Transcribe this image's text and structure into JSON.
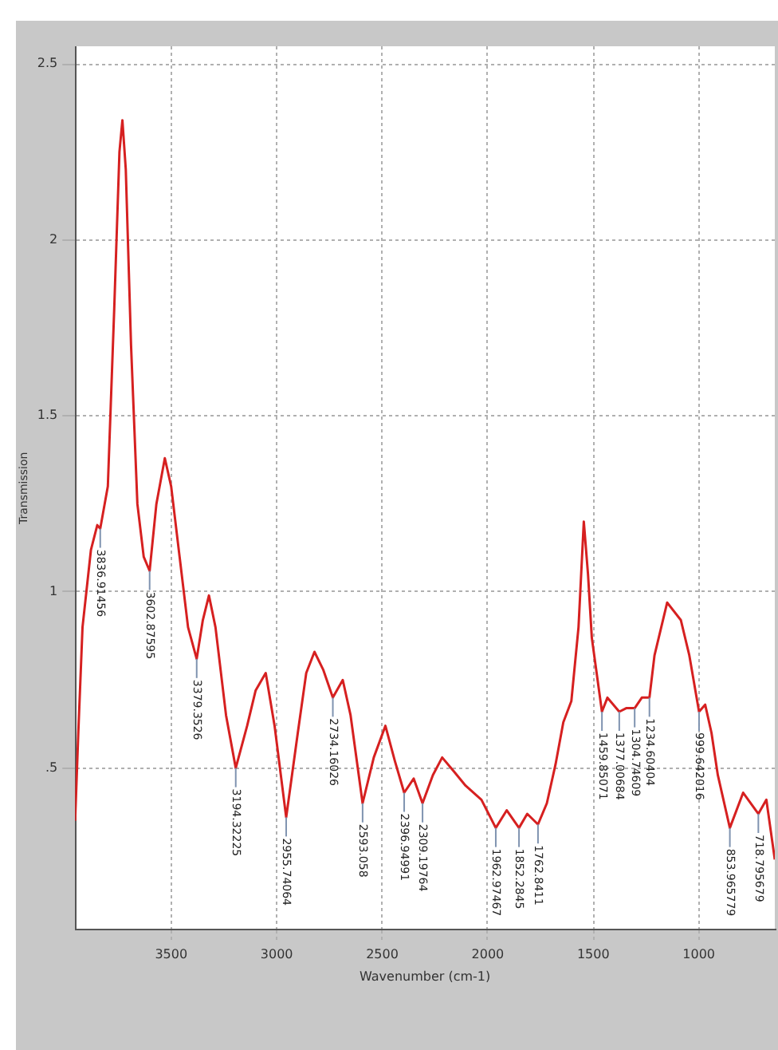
{
  "chart_data": {
    "type": "line",
    "xlabel": "Wavenumber (cm-1)",
    "ylabel": "Transmission",
    "xlim": [
      3955,
      640
    ],
    "xticks": [
      3500,
      3000,
      2500,
      2000,
      1500,
      1000
    ],
    "ylim": [
      0.04,
      2.55
    ],
    "yticks": [
      {
        "value": 0.5,
        "label": ".5"
      },
      1,
      1.5,
      2,
      2.5
    ],
    "grid": true,
    "legend": false,
    "marker": "none",
    "line_style": "solid",
    "x": [
      3955,
      3940,
      3920,
      3880,
      3850,
      3836,
      3800,
      3770,
      3745,
      3731,
      3715,
      3690,
      3660,
      3630,
      3602,
      3570,
      3530,
      3500,
      3460,
      3420,
      3379,
      3350,
      3321,
      3290,
      3240,
      3194,
      3140,
      3100,
      3052,
      3010,
      2955,
      2900,
      2860,
      2821,
      2780,
      2734,
      2687,
      2650,
      2593,
      2540,
      2485,
      2440,
      2396,
      2351,
      2309,
      2260,
      2216,
      2160,
      2105,
      2030,
      1962,
      1910,
      1852,
      1813,
      1762,
      1720,
      1679,
      1642,
      1604,
      1570,
      1545,
      1525,
      1507,
      1459,
      1433,
      1377,
      1344,
      1304,
      1270,
      1234,
      1210,
      1150,
      1085,
      1045,
      999,
      970,
      940,
      910,
      853,
      790,
      718,
      680,
      640
    ],
    "series": [
      {
        "color": "#d62020",
        "values": [
          0.35,
          0.6,
          0.9,
          1.12,
          1.19,
          1.18,
          1.3,
          1.8,
          2.25,
          2.34,
          2.2,
          1.7,
          1.25,
          1.1,
          1.06,
          1.25,
          1.38,
          1.3,
          1.1,
          0.9,
          0.81,
          0.92,
          0.99,
          0.9,
          0.65,
          0.5,
          0.62,
          0.72,
          0.77,
          0.62,
          0.36,
          0.6,
          0.77,
          0.83,
          0.78,
          0.7,
          0.75,
          0.65,
          0.4,
          0.53,
          0.62,
          0.52,
          0.43,
          0.47,
          0.4,
          0.48,
          0.53,
          0.49,
          0.45,
          0.41,
          0.33,
          0.38,
          0.33,
          0.37,
          0.34,
          0.4,
          0.51,
          0.63,
          0.69,
          0.9,
          1.2,
          1.05,
          0.87,
          0.66,
          0.7,
          0.66,
          0.67,
          0.67,
          0.7,
          0.7,
          0.82,
          0.97,
          0.92,
          0.82,
          0.66,
          0.68,
          0.6,
          0.48,
          0.33,
          0.43,
          0.37,
          0.41,
          0.24
        ]
      }
    ],
    "annotations": [
      {
        "text": "3836.91456",
        "x": 3836,
        "y": 1.18
      },
      {
        "text": "3602.87595",
        "x": 3602,
        "y": 1.06
      },
      {
        "text": "3379.3526",
        "x": 3379,
        "y": 0.81
      },
      {
        "text": "3194.32225",
        "x": 3194,
        "y": 0.5
      },
      {
        "text": "2955.74064",
        "x": 2955,
        "y": 0.36
      },
      {
        "text": "2734.16026",
        "x": 2734,
        "y": 0.7
      },
      {
        "text": "2593.058",
        "x": 2593,
        "y": 0.4
      },
      {
        "text": "2396.94991",
        "x": 2396,
        "y": 0.43
      },
      {
        "text": "2309.19764",
        "x": 2309,
        "y": 0.4
      },
      {
        "text": "1962.97467",
        "x": 1962,
        "y": 0.33
      },
      {
        "text": "1852.2845",
        "x": 1852,
        "y": 0.33
      },
      {
        "text": "1762.8411",
        "x": 1762,
        "y": 0.34
      },
      {
        "text": "1459.85071",
        "x": 1459,
        "y": 0.66
      },
      {
        "text": "1377.00684",
        "x": 1377,
        "y": 0.66
      },
      {
        "text": "1304.74609",
        "x": 1304,
        "y": 0.67
      },
      {
        "text": "1234.60404",
        "x": 1234,
        "y": 0.7
      },
      {
        "text": "999.642016",
        "x": 999,
        "y": 0.66
      },
      {
        "text": "853.965779",
        "x": 853,
        "y": 0.33
      },
      {
        "text": "718.795679",
        "x": 718,
        "y": 0.37
      }
    ]
  }
}
